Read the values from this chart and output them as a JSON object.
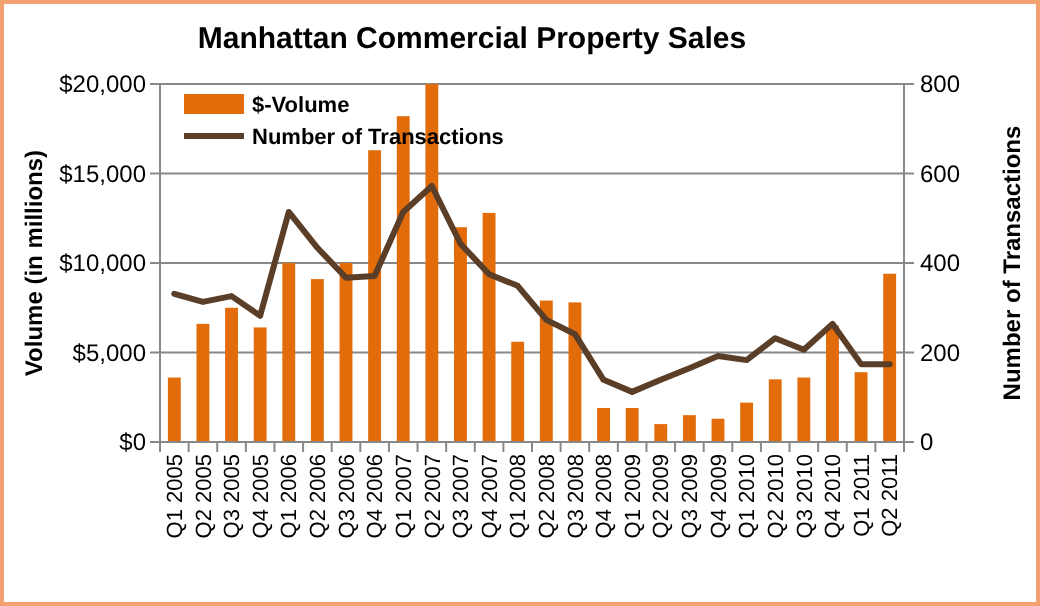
{
  "chart_data": {
    "type": "bar",
    "title": "Manhattan Commercial Property Sales",
    "ylabel": "Volume (in millions)",
    "y2label": "Number of Transactions",
    "categories": [
      "Q1 2005",
      "Q2 2005",
      "Q3 2005",
      "Q4 2005",
      "Q1 2006",
      "Q2 2006",
      "Q3 2006",
      "Q4 2006",
      "Q1 2007",
      "Q2 2007",
      "Q3 2007",
      "Q4 2007",
      "Q1 2008",
      "Q2 2008",
      "Q3 2008",
      "Q4 2008",
      "Q1 2009",
      "Q2 2009",
      "Q3 2009",
      "Q4 2009",
      "Q1 2010",
      "Q2 2010",
      "Q3 2010",
      "Q4 2010",
      "Q1 2011",
      "Q2 2011"
    ],
    "series": [
      {
        "name": "$-Volume",
        "color": "#e36c0a",
        "values": [
          3600,
          6600,
          7500,
          6400,
          10000,
          9100,
          10000,
          16300,
          18200,
          20000,
          12000,
          12800,
          5600,
          7900,
          7800,
          1900,
          1900,
          1000,
          1500,
          1300,
          2200,
          3500,
          3600,
          6500,
          3900,
          9400
        ]
      },
      {
        "name": "Number of Transactions",
        "type": "line",
        "axis": "y2",
        "color": "#5a3e28",
        "values": [
          331,
          313,
          326,
          282,
          514,
          434,
          367,
          371,
          514,
          572,
          443,
          375,
          349,
          273,
          241,
          139,
          112,
          139,
          165,
          192,
          183,
          232,
          206,
          264,
          174,
          174
        ]
      }
    ],
    "ylim": [
      0,
      20000
    ],
    "yticks": [
      {
        "value": 0,
        "label": "$0"
      },
      {
        "value": 5000,
        "label": "$5,000"
      },
      {
        "value": 10000,
        "label": "$10,000"
      },
      {
        "value": 15000,
        "label": "$15,000"
      },
      {
        "value": 20000,
        "label": "$20,000"
      }
    ],
    "y2lim": [
      0,
      800
    ],
    "y2ticks": [
      0,
      200,
      400,
      600,
      800
    ],
    "grid": "y",
    "legend": "top left",
    "marker": "none",
    "line_style": "solid"
  }
}
